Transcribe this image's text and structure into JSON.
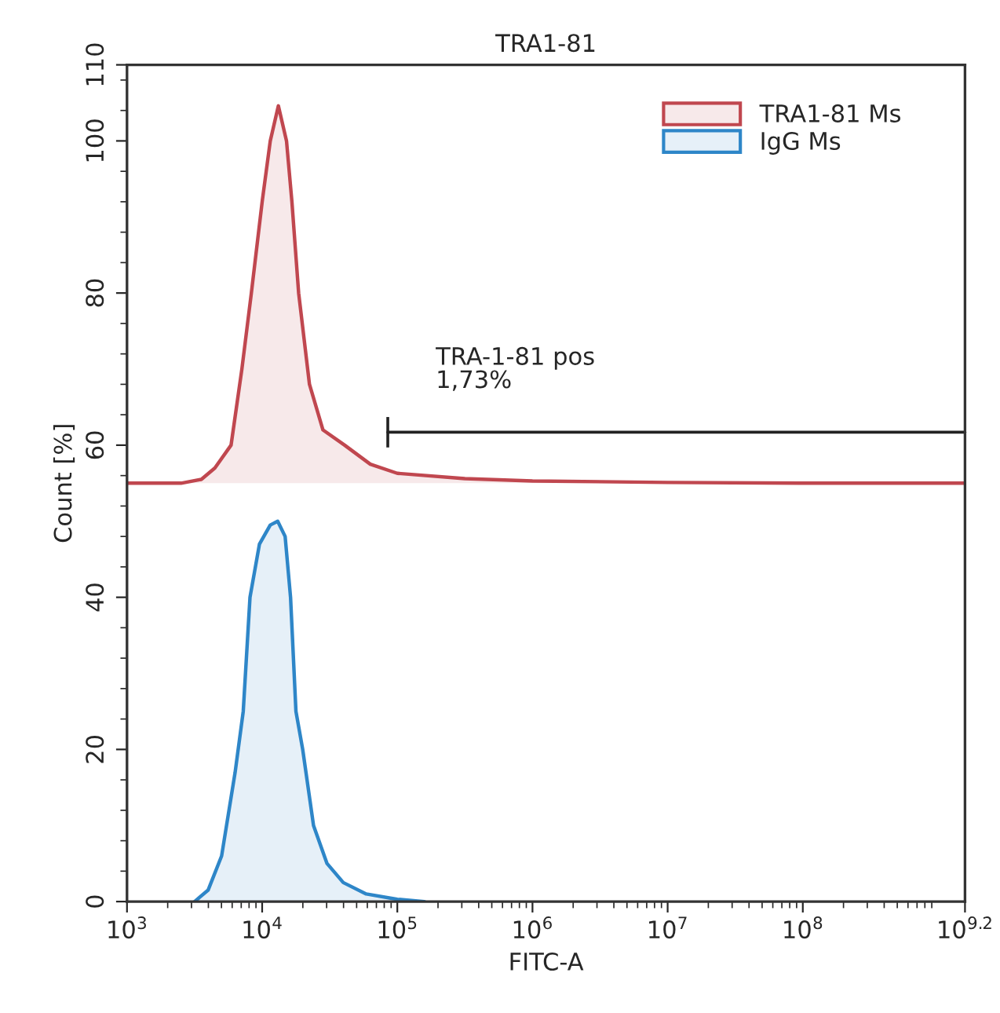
{
  "chart_data": {
    "type": "area",
    "title": "TRA1-81",
    "xlabel": "FITC-A",
    "ylabel": "Count [%]",
    "log": "x",
    "grid": false,
    "legend": "top right",
    "xlim": [
      1000,
      1584893192
    ],
    "ylim": [
      0,
      110
    ],
    "xticks": [
      {
        "value": 1000,
        "label": "10$^{3}$"
      },
      {
        "value": 10000,
        "label": "10$^{4}$"
      },
      {
        "value": 100000,
        "label": "10$^{5}$"
      },
      {
        "value": 1000000,
        "label": "10$^{6}$"
      },
      {
        "value": 10000000,
        "label": "10$^{7}$"
      },
      {
        "value": 100000000,
        "label": "10$^{8}$"
      },
      {
        "value": 1584893192,
        "label": "10$^{9.2}$"
      }
    ],
    "yticks": [
      0,
      20,
      40,
      60,
      80,
      100,
      110
    ],
    "series": [
      {
        "name": "TRA1-81 Ms",
        "color": "#c0474f",
        "x": [
          1000,
          2512,
          3548,
          4467,
          5888,
          7079,
          8318,
          10000,
          11480,
          13180,
          15140,
          16600,
          18620,
          22390,
          28180,
          40740,
          63100,
          100000,
          316200,
          1000000,
          10000000,
          100000000,
          1584893192
        ],
        "values": [
          55,
          55,
          55.5,
          57,
          60,
          70,
          80,
          92,
          100,
          104.6,
          100,
          92,
          80,
          68,
          62,
          60,
          57.5,
          56.3,
          55.6,
          55.3,
          55.1,
          55,
          55
        ]
      },
      {
        "name": "IgG Ms",
        "color": "#2e86c8",
        "x": [
          3162,
          3981,
          5012,
          6310,
          7244,
          8128,
          9550,
          11480,
          13030,
          14790,
          16220,
          17780,
          19950,
          23990,
          30200,
          39810,
          58880,
          100000,
          158500
        ],
        "values": [
          0,
          1.5,
          6,
          17,
          25,
          40,
          47,
          49.5,
          50,
          48,
          40,
          25,
          20,
          10,
          5,
          2.5,
          1,
          0.3,
          0
        ]
      },
      {
        "type": "line",
        "color": "#222222",
        "x": [
          85000,
          1584893192
        ],
        "values": [
          61.7,
          61.7
        ],
        "errors": [
          2,
          null
        ]
      }
    ],
    "annotations": [
      {
        "text": "TRA-1-81 pos\n1,73%",
        "x": 85000,
        "y": 61.7
      }
    ]
  }
}
